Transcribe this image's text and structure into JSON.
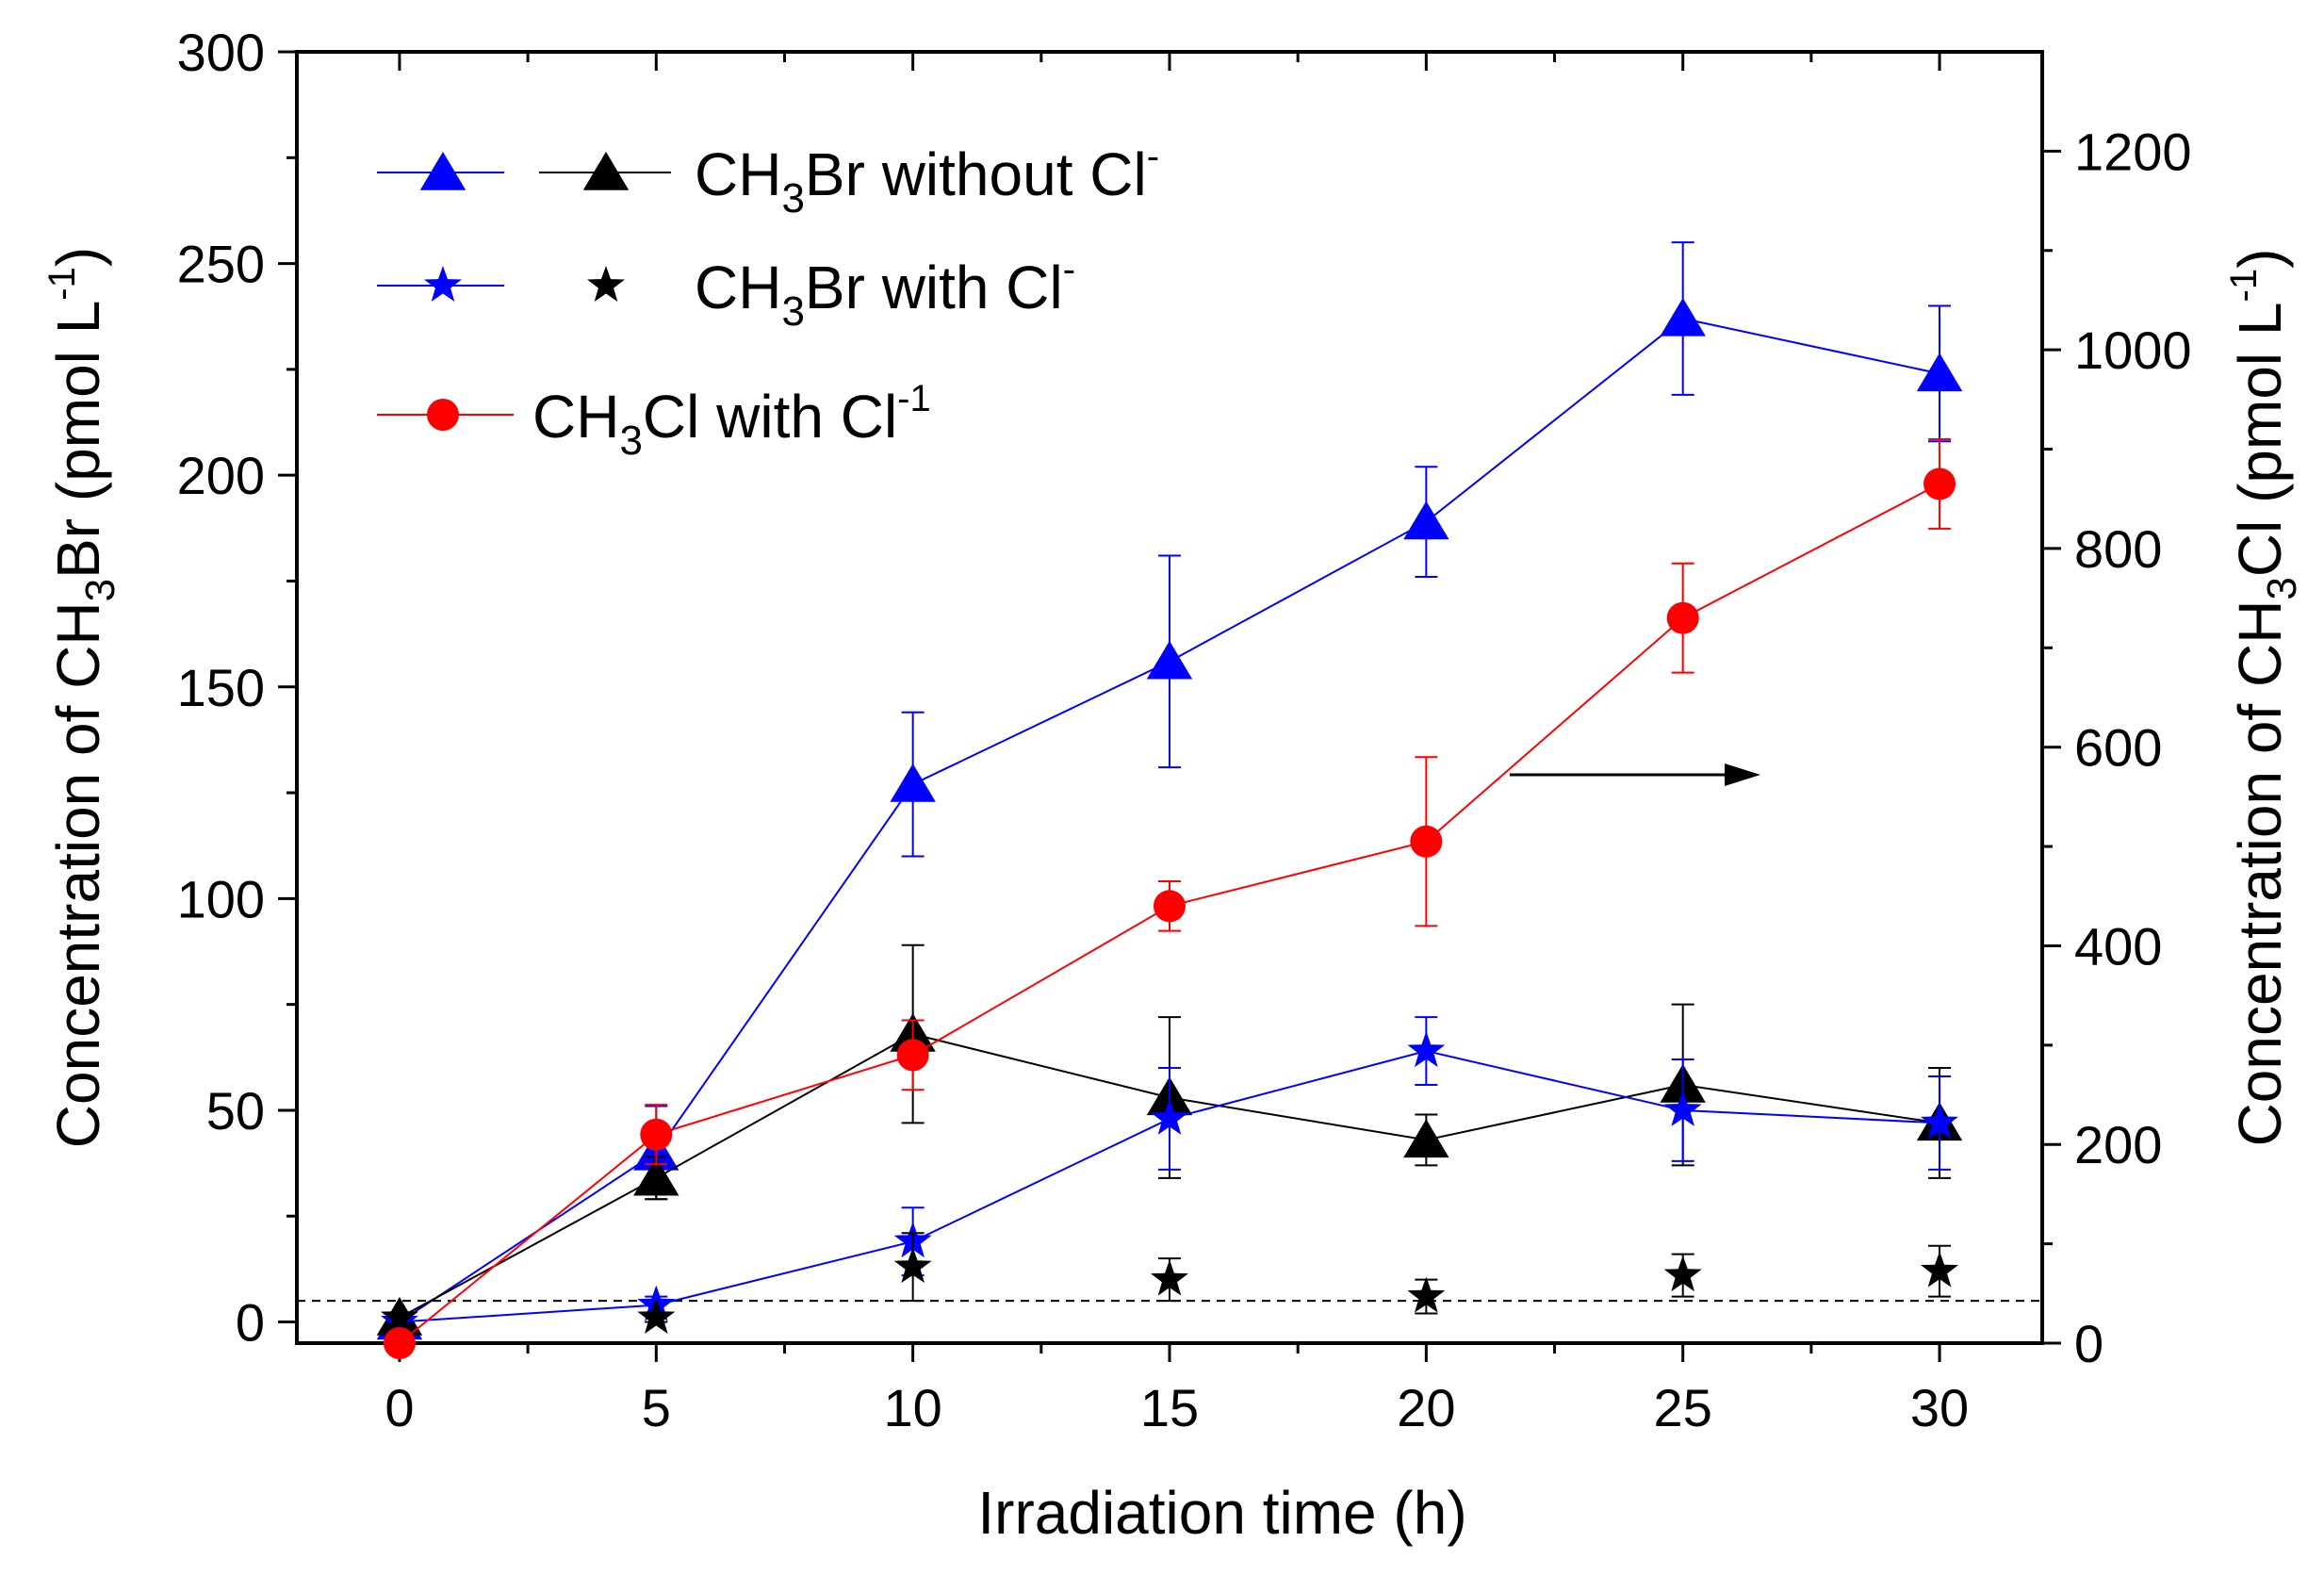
{
  "chart_data": {
    "type": "line",
    "xlabel": "Irradiation time (h)",
    "ylabel_left": {
      "prefix": "Concentration of  CH",
      "sub": "3",
      "mid": "Br (pmol L",
      "sup": "-1",
      "suffix": ")"
    },
    "ylabel_right": {
      "prefix": "Concentration of  CH",
      "sub": "3",
      "mid": "Cl (pmol L",
      "sup": "-1",
      "suffix": ")"
    },
    "x": [
      0,
      5,
      10,
      15,
      20,
      25,
      30
    ],
    "xlim": [
      -2,
      32
    ],
    "xticks": [
      "0",
      "5",
      "10",
      "15",
      "20",
      "25",
      "30"
    ],
    "ylim_left": [
      -5,
      300
    ],
    "yticks_left": [
      "0",
      "50",
      "100",
      "150",
      "200",
      "250",
      "300"
    ],
    "ylim_right": [
      0,
      1300
    ],
    "yticks_right": [
      "0",
      "200",
      "400",
      "600",
      "800",
      "1000",
      "1200"
    ],
    "detection_limit_left": 5,
    "series": [
      {
        "name": "CH3Br without Cl- (blue)",
        "axis": "left",
        "color": "#0000ff",
        "marker": "triangle",
        "line": true,
        "values": [
          0,
          40,
          127,
          156,
          189,
          237,
          224
        ],
        "err": [
          0,
          11,
          17,
          25,
          13,
          18,
          16
        ]
      },
      {
        "name": "CH3Br without Cl- (black)",
        "axis": "left",
        "color": "#000000",
        "marker": "triangle",
        "line": true,
        "values": [
          1,
          34,
          68,
          53,
          43,
          56,
          47
        ],
        "err": [
          0,
          5,
          21,
          19,
          6,
          19,
          13
        ]
      },
      {
        "name": "CH3Br with Cl- (blue)",
        "axis": "left",
        "color": "#0000ff",
        "marker": "star",
        "line": true,
        "values": [
          0,
          4,
          19,
          48,
          64,
          50,
          47
        ],
        "err": [
          0,
          2,
          8,
          12,
          8,
          12,
          11
        ]
      },
      {
        "name": "CH3Br with Cl- (black)",
        "axis": "left",
        "color": "#000000",
        "marker": "star",
        "line": false,
        "values": [
          1,
          1,
          13,
          10,
          6,
          11,
          12
        ],
        "err": [
          0,
          1,
          8,
          5,
          4,
          5,
          6
        ]
      },
      {
        "name": "CH3Cl with Cl-1",
        "axis": "right",
        "color": "#ff0000",
        "marker": "circle",
        "line": true,
        "values": [
          0,
          210,
          290,
          440,
          505,
          730,
          865
        ],
        "err": [
          0,
          30,
          35,
          25,
          85,
          55,
          45
        ]
      }
    ],
    "legend": [
      {
        "text": "CH",
        "sub": "3",
        "mid": "Br without Cl",
        "sup": "-"
      },
      {
        "text": "CH",
        "sub": "3",
        "mid": "Br with Cl",
        "sup": "-"
      },
      {
        "text": "CH",
        "sub": "3",
        "mid": "Cl with Cl",
        "sup": "-1"
      }
    ],
    "annotation": "arrow pointing right (CH3Cl series uses right axis)"
  }
}
